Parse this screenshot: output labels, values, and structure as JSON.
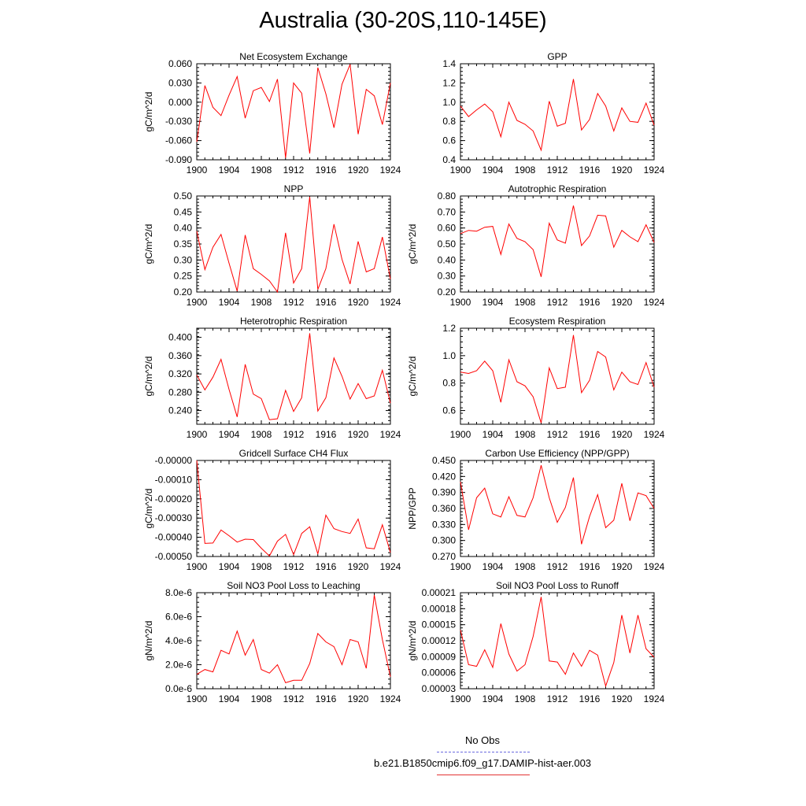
{
  "title": "Australia (30-20S,110-145E)",
  "legend": [
    {
      "label": "No Obs",
      "color": "#6a6adf",
      "dash": true
    },
    {
      "label": "b.e21.B1850cmip6.f09_g17.DAMIP-hist-aer.003",
      "color": "#e33333",
      "dash": false
    }
  ],
  "colors": {
    "series": "#ff0000"
  },
  "chart_data": [
    {
      "type": "line",
      "title": "Net Ecosystem Exchange",
      "ylabel": "gC/m^2/d",
      "xlim": [
        1900,
        1924
      ],
      "xticks": [
        "1900",
        "1904",
        "1908",
        "1912",
        "1916",
        "1920",
        "1924"
      ],
      "ylim": [
        -0.09,
        0.06
      ],
      "yticks": [
        "-0.090",
        "-0.060",
        "-0.030",
        "0.000",
        "0.030",
        "0.060"
      ],
      "x": [
        1900,
        1901,
        1902,
        1903,
        1904,
        1905,
        1906,
        1907,
        1908,
        1909,
        1910,
        1911,
        1912,
        1913,
        1914,
        1915,
        1916,
        1917,
        1918,
        1919,
        1920,
        1921,
        1922,
        1923,
        1924
      ],
      "values": [
        -0.062,
        0.026,
        -0.008,
        -0.021,
        0.011,
        0.04,
        -0.025,
        0.018,
        0.023,
        0.001,
        0.036,
        -0.087,
        0.03,
        0.014,
        -0.08,
        0.054,
        0.013,
        -0.04,
        0.028,
        0.059,
        -0.05,
        0.02,
        0.01,
        -0.035,
        0.03
      ]
    },
    {
      "type": "line",
      "title": "GPP",
      "ylabel": "",
      "xlim": [
        1900,
        1924
      ],
      "xticks": [
        "1900",
        "1904",
        "1908",
        "1912",
        "1916",
        "1920",
        "1924"
      ],
      "ylim": [
        0.4,
        1.4
      ],
      "yticks": [
        "0.4",
        "0.6",
        "0.8",
        "1.0",
        "1.2",
        "1.4"
      ],
      "x": [
        1900,
        1901,
        1902,
        1903,
        1904,
        1905,
        1906,
        1907,
        1908,
        1909,
        1910,
        1911,
        1912,
        1913,
        1914,
        1915,
        1916,
        1917,
        1918,
        1919,
        1920,
        1921,
        1922,
        1923,
        1924
      ],
      "values": [
        0.96,
        0.85,
        0.92,
        0.98,
        0.9,
        0.64,
        1.0,
        0.81,
        0.77,
        0.7,
        0.5,
        1.01,
        0.75,
        0.78,
        1.24,
        0.71,
        0.82,
        1.09,
        0.96,
        0.7,
        0.94,
        0.8,
        0.79,
        0.99,
        0.76
      ]
    },
    {
      "type": "line",
      "title": "NPP",
      "ylabel": "gC/m^2/d",
      "xlim": [
        1900,
        1924
      ],
      "xticks": [
        "1900",
        "1904",
        "1908",
        "1912",
        "1916",
        "1920",
        "1924"
      ],
      "ylim": [
        0.2,
        0.5
      ],
      "yticks": [
        "0.20",
        "0.25",
        "0.30",
        "0.35",
        "0.40",
        "0.45",
        "0.50"
      ],
      "x": [
        1900,
        1901,
        1902,
        1903,
        1904,
        1905,
        1906,
        1907,
        1908,
        1909,
        1910,
        1911,
        1912,
        1913,
        1914,
        1915,
        1916,
        1917,
        1918,
        1919,
        1920,
        1921,
        1922,
        1923,
        1924
      ],
      "values": [
        0.39,
        0.27,
        0.34,
        0.38,
        0.29,
        0.203,
        0.378,
        0.273,
        0.255,
        0.235,
        0.2,
        0.385,
        0.228,
        0.273,
        0.497,
        0.208,
        0.273,
        0.412,
        0.302,
        0.225,
        0.358,
        0.263,
        0.273,
        0.372,
        0.24
      ]
    },
    {
      "type": "line",
      "title": "Autotrophic Respiration",
      "ylabel": "gC/m^2/d",
      "xlim": [
        1900,
        1924
      ],
      "xticks": [
        "1900",
        "1904",
        "1908",
        "1912",
        "1916",
        "1920",
        "1924"
      ],
      "ylim": [
        0.2,
        0.8
      ],
      "yticks": [
        "0.20",
        "0.30",
        "0.40",
        "0.50",
        "0.60",
        "0.70",
        "0.80"
      ],
      "x": [
        1900,
        1901,
        1902,
        1903,
        1904,
        1905,
        1906,
        1907,
        1908,
        1909,
        1910,
        1911,
        1912,
        1913,
        1914,
        1915,
        1916,
        1917,
        1918,
        1919,
        1920,
        1921,
        1922,
        1923,
        1924
      ],
      "values": [
        0.565,
        0.585,
        0.58,
        0.605,
        0.61,
        0.435,
        0.625,
        0.535,
        0.515,
        0.465,
        0.295,
        0.63,
        0.525,
        0.505,
        0.74,
        0.49,
        0.55,
        0.68,
        0.675,
        0.48,
        0.585,
        0.545,
        0.515,
        0.62,
        0.51
      ]
    },
    {
      "type": "line",
      "title": "Heterotrophic Respiration",
      "ylabel": "gC/m^2/d",
      "xlim": [
        1900,
        1924
      ],
      "xticks": [
        "1900",
        "1904",
        "1908",
        "1912",
        "1916",
        "1920",
        "1924"
      ],
      "ylim": [
        0.21,
        0.42
      ],
      "yticks": [
        "0.240",
        "0.280",
        "0.320",
        "0.360",
        "0.400"
      ],
      "x": [
        1900,
        1901,
        1902,
        1903,
        1904,
        1905,
        1906,
        1907,
        1908,
        1909,
        1910,
        1911,
        1912,
        1913,
        1914,
        1915,
        1916,
        1917,
        1918,
        1919,
        1920,
        1921,
        1922,
        1923,
        1924
      ],
      "values": [
        0.318,
        0.285,
        0.313,
        0.352,
        0.286,
        0.226,
        0.341,
        0.276,
        0.266,
        0.22,
        0.222,
        0.284,
        0.238,
        0.268,
        0.409,
        0.239,
        0.268,
        0.355,
        0.315,
        0.265,
        0.299,
        0.266,
        0.272,
        0.328,
        0.256
      ]
    },
    {
      "type": "line",
      "title": "Ecosystem Respiration",
      "ylabel": "gC/m^2/d",
      "xlim": [
        1900,
        1924
      ],
      "xticks": [
        "1900",
        "1904",
        "1908",
        "1912",
        "1916",
        "1920",
        "1924"
      ],
      "ylim": [
        0.5,
        1.2
      ],
      "yticks": [
        "0.6",
        "0.8",
        "1.0",
        "1.2"
      ],
      "x": [
        1900,
        1901,
        1902,
        1903,
        1904,
        1905,
        1906,
        1907,
        1908,
        1909,
        1910,
        1911,
        1912,
        1913,
        1914,
        1915,
        1916,
        1917,
        1918,
        1919,
        1920,
        1921,
        1922,
        1923,
        1924
      ],
      "values": [
        0.88,
        0.87,
        0.89,
        0.96,
        0.89,
        0.66,
        0.97,
        0.81,
        0.78,
        0.7,
        0.51,
        0.91,
        0.76,
        0.77,
        1.15,
        0.73,
        0.82,
        1.03,
        0.99,
        0.75,
        0.88,
        0.81,
        0.79,
        0.95,
        0.77
      ]
    },
    {
      "type": "line",
      "title": "Gridcell Surface CH4 Flux",
      "ylabel": "gC/m^2/d",
      "xlim": [
        1900,
        1924
      ],
      "xticks": [
        "1900",
        "1904",
        "1908",
        "1912",
        "1916",
        "1920",
        "1924"
      ],
      "ylim": [
        -0.0005,
        0.0
      ],
      "yticks": [
        "-0.00050",
        "-0.00040",
        "-0.00030",
        "-0.00020",
        "-0.00010",
        "-0.00000"
      ],
      "x": [
        1900,
        1901,
        1902,
        1903,
        1904,
        1905,
        1906,
        1907,
        1908,
        1909,
        1910,
        1911,
        1912,
        1913,
        1914,
        1915,
        1916,
        1917,
        1918,
        1919,
        1920,
        1921,
        1922,
        1923,
        1924
      ],
      "values": [
        0.0,
        -0.000432,
        -0.00043,
        -0.000362,
        -0.000392,
        -0.000425,
        -0.00041,
        -0.000412,
        -0.000457,
        -0.000497,
        -0.00042,
        -0.000385,
        -0.00049,
        -0.00038,
        -0.000345,
        -0.000487,
        -0.000285,
        -0.000355,
        -0.00037,
        -0.00038,
        -0.000305,
        -0.000455,
        -0.00046,
        -0.000335,
        -0.00048
      ]
    },
    {
      "type": "line",
      "title": "Carbon Use Efficiency (NPP/GPP)",
      "ylabel": "NPP/GPP",
      "xlim": [
        1900,
        1924
      ],
      "xticks": [
        "1900",
        "1904",
        "1908",
        "1912",
        "1916",
        "1920",
        "1924"
      ],
      "ylim": [
        0.27,
        0.45
      ],
      "yticks": [
        "0.270",
        "0.300",
        "0.330",
        "0.360",
        "0.390",
        "0.420",
        "0.450"
      ],
      "x": [
        1900,
        1901,
        1902,
        1903,
        1904,
        1905,
        1906,
        1907,
        1908,
        1909,
        1910,
        1911,
        1912,
        1913,
        1914,
        1915,
        1916,
        1917,
        1918,
        1919,
        1920,
        1921,
        1922,
        1923,
        1924
      ],
      "values": [
        0.41,
        0.32,
        0.38,
        0.398,
        0.35,
        0.344,
        0.382,
        0.347,
        0.344,
        0.38,
        0.441,
        0.38,
        0.334,
        0.362,
        0.418,
        0.293,
        0.345,
        0.386,
        0.324,
        0.338,
        0.407,
        0.337,
        0.389,
        0.384,
        0.36
      ]
    },
    {
      "type": "line",
      "title": "Soil NO3 Pool Loss to Leaching",
      "ylabel": "gN/m^2/d",
      "xlim": [
        1900,
        1924
      ],
      "xticks": [
        "1900",
        "1904",
        "1908",
        "1912",
        "1916",
        "1920",
        "1924"
      ],
      "ylim": [
        0.0,
        8e-06
      ],
      "yticks": [
        "0.0e-6",
        "2.0e-6",
        "4.0e-6",
        "6.0e-6",
        "8.0e-6"
      ],
      "x": [
        1900,
        1901,
        1902,
        1903,
        1904,
        1905,
        1906,
        1907,
        1908,
        1909,
        1910,
        1911,
        1912,
        1913,
        1914,
        1915,
        1916,
        1917,
        1918,
        1919,
        1920,
        1921,
        1922,
        1923,
        1924
      ],
      "values": [
        1.2e-06,
        1.6e-06,
        1.4e-06,
        3.2e-06,
        2.9e-06,
        4.8e-06,
        2.8e-06,
        4.1e-06,
        1.6e-06,
        1.3e-06,
        2e-06,
        5e-07,
        7e-07,
        7e-07,
        2.1e-06,
        4.6e-06,
        3.9e-06,
        3.5e-06,
        2e-06,
        4.1e-06,
        3.9e-06,
        1.7e-06,
        7.8e-06,
        4.1e-06,
        1e-06
      ]
    },
    {
      "type": "line",
      "title": "Soil NO3 Pool Loss to Runoff",
      "ylabel": "gN/m^2/d",
      "xlim": [
        1900,
        1924
      ],
      "xticks": [
        "1900",
        "1904",
        "1908",
        "1912",
        "1916",
        "1920",
        "1924"
      ],
      "ylim": [
        3e-05,
        0.00021
      ],
      "yticks": [
        "0.00003",
        "0.00006",
        "0.00009",
        "0.00012",
        "0.00015",
        "0.00018",
        "0.00021"
      ],
      "x": [
        1900,
        1901,
        1902,
        1903,
        1904,
        1905,
        1906,
        1907,
        1908,
        1909,
        1910,
        1911,
        1912,
        1913,
        1914,
        1915,
        1916,
        1917,
        1918,
        1919,
        1920,
        1921,
        1922,
        1923,
        1924
      ],
      "values": [
        0.00014,
        7.5e-05,
        7.2e-05,
        0.000103,
        7e-05,
        0.000152,
        9.5e-05,
        6.3e-05,
        7.5e-05,
        0.000128,
        0.000202,
        8.2e-05,
        8e-05,
        5.7e-05,
        9.7e-05,
        7.2e-05,
        0.000102,
        9.3e-05,
        3.5e-05,
        7.9e-05,
        0.000168,
        9.7e-05,
        0.000168,
        0.000105,
        8.9e-05
      ]
    }
  ]
}
